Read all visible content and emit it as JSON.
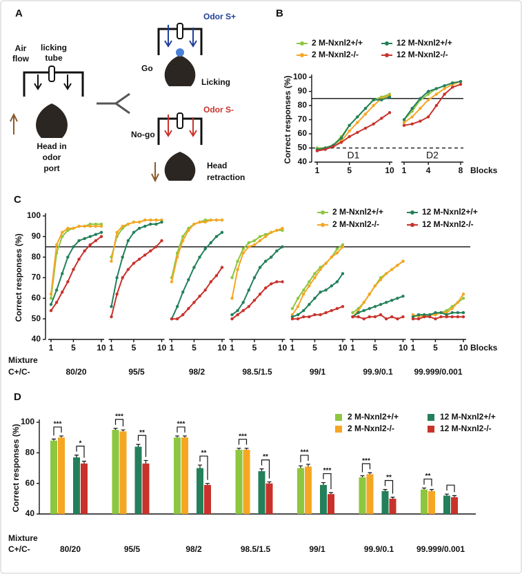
{
  "panel_labels": [
    "A",
    "B",
    "C",
    "D"
  ],
  "diagram": {
    "air_flow": [
      "Air",
      "flow"
    ],
    "licking_tube": [
      "licking",
      "tube"
    ],
    "head_in_odor_port": [
      "Head in",
      "odor",
      "port"
    ],
    "go": "Go",
    "odor_s_plus": "Odor S+",
    "licking": "Licking",
    "no_go": "No-go",
    "odor_s_minus": "Odor S-",
    "head_retraction": [
      "Head",
      "retraction"
    ]
  },
  "chart_data": [
    {
      "type": "line",
      "ylabel": "Correct responses (%)",
      "xlabel": "Blocks",
      "ylim": [
        40,
        100
      ],
      "yticks": [
        40,
        50,
        60,
        70,
        80,
        90,
        100
      ],
      "reference_lines": [
        {
          "value": 85,
          "style": "solid"
        },
        {
          "value": 50,
          "style": "dashed"
        }
      ],
      "series": [
        {
          "name": "2 M-Nxnl2+/+",
          "color": "#8dc63f"
        },
        {
          "name": "2 M-Nxnl2-/-",
          "color": "#f5a623"
        },
        {
          "name": "12 M-Nxnl2+/+",
          "color": "#23805a"
        },
        {
          "name": "12 M-Nxnl2-/-",
          "color": "#c8322b"
        }
      ],
      "segments": [
        {
          "label": "D1",
          "x": [
            1,
            2,
            3,
            4,
            5,
            6,
            7,
            8,
            9,
            10
          ],
          "xticks": [
            1,
            5,
            10
          ],
          "values": [
            [
              50,
              50,
              52,
              58,
              66,
              72,
              78,
              84,
              86,
              88
            ],
            [
              49,
              50,
              51,
              55,
              62,
              68,
              74,
              80,
              85,
              87
            ],
            [
              49,
              50,
              52,
              57,
              66,
              72,
              78,
              84,
              84,
              86
            ],
            [
              48,
              49,
              51,
              54,
              58,
              61,
              64,
              67,
              71,
              75
            ]
          ]
        },
        {
          "label": "D2",
          "x": [
            1,
            2,
            3,
            4,
            5,
            6,
            7,
            8
          ],
          "xticks": [
            1,
            4,
            8
          ],
          "values": [
            [
              70,
              76,
              84,
              88,
              92,
              94,
              96,
              97
            ],
            [
              68,
              72,
              78,
              84,
              88,
              92,
              95,
              97
            ],
            [
              70,
              78,
              85,
              90,
              92,
              94,
              96,
              97
            ],
            [
              66,
              67,
              69,
              72,
              80,
              88,
              93,
              95
            ]
          ]
        }
      ]
    },
    {
      "type": "line",
      "ylabel": "Correct responses (%)",
      "xlabel": "Blocks",
      "mixture_label": "Mixture",
      "ratio_label": "C+/C-",
      "ylim": [
        40,
        100
      ],
      "yticks": [
        40,
        50,
        60,
        70,
        80,
        90,
        100
      ],
      "reference_lines": [
        {
          "value": 85,
          "style": "solid"
        }
      ],
      "series": [
        {
          "name": "2 M-Nxnl2+/+",
          "color": "#8dc63f"
        },
        {
          "name": "2 M-Nxnl2-/-",
          "color": "#f5a623"
        },
        {
          "name": "12 M-Nxnl2+/+",
          "color": "#23805a"
        },
        {
          "name": "12 M-Nxnl2-/-",
          "color": "#c8322b"
        }
      ],
      "segments": [
        {
          "label": "80/20",
          "x": [
            1,
            2,
            3,
            4,
            5,
            6,
            7,
            8,
            9,
            10
          ],
          "xticks": [
            1,
            5,
            10
          ],
          "values": [
            [
              60,
              82,
              90,
              93,
              94,
              95,
              95,
              96,
              96,
              96
            ],
            [
              62,
              86,
              92,
              94,
              94,
              95,
              95,
              95,
              95,
              95
            ],
            [
              57,
              64,
              72,
              80,
              85,
              88,
              89,
              90,
              91,
              92
            ],
            [
              54,
              58,
              63,
              68,
              74,
              79,
              83,
              86,
              88,
              90
            ]
          ]
        },
        {
          "label": "95/5",
          "x": [
            1,
            2,
            3,
            4,
            5,
            6,
            7,
            8,
            9,
            10
          ],
          "xticks": [
            1,
            5,
            10
          ],
          "values": [
            [
              80,
              90,
              94,
              96,
              97,
              97,
              98,
              98,
              98,
              98
            ],
            [
              78,
              92,
              95,
              96,
              97,
              97,
              98,
              98,
              98,
              98
            ],
            [
              56,
              70,
              80,
              88,
              92,
              94,
              95,
              96,
              96,
              97
            ],
            [
              51,
              62,
              70,
              74,
              77,
              79,
              81,
              83,
              85,
              88
            ]
          ]
        },
        {
          "label": "98/2",
          "x": [
            1,
            2,
            3,
            4,
            5,
            6,
            7,
            8,
            9,
            10
          ],
          "xticks": [
            1,
            5,
            10
          ],
          "values": [
            [
              70,
              82,
              90,
              94,
              96,
              97,
              98,
              98,
              98,
              98
            ],
            [
              68,
              80,
              88,
              93,
              96,
              97,
              97,
              98,
              98,
              98
            ],
            [
              50,
              56,
              63,
              69,
              75,
              80,
              84,
              87,
              90,
              92
            ],
            [
              50,
              50,
              52,
              55,
              58,
              61,
              64,
              68,
              71,
              75
            ]
          ]
        },
        {
          "label": "98.5/1.5",
          "x": [
            1,
            2,
            3,
            4,
            5,
            6,
            7,
            8,
            9,
            10
          ],
          "xticks": [
            1,
            5,
            10
          ],
          "values": [
            [
              70,
              78,
              84,
              87,
              88,
              90,
              91,
              92,
              93,
              93
            ],
            [
              60,
              74,
              82,
              85,
              86,
              88,
              90,
              92,
              93,
              94
            ],
            [
              52,
              54,
              58,
              64,
              70,
              75,
              78,
              80,
              83,
              85
            ],
            [
              50,
              52,
              54,
              56,
              59,
              62,
              65,
              67,
              68,
              68
            ]
          ]
        },
        {
          "label": "99/1",
          "x": [
            1,
            2,
            3,
            4,
            5,
            6,
            7,
            8,
            9,
            10
          ],
          "xticks": [
            1,
            5,
            10
          ],
          "values": [
            [
              55,
              60,
              64,
              68,
              72,
              75,
              77,
              80,
              84,
              86
            ],
            [
              52,
              56,
              62,
              66,
              70,
              74,
              77,
              80,
              82,
              85
            ],
            [
              51,
              52,
              54,
              57,
              60,
              63,
              64,
              66,
              68,
              72
            ],
            [
              50,
              50,
              51,
              51,
              52,
              52,
              53,
              54,
              55,
              56
            ]
          ]
        },
        {
          "label": "99.9/0.1",
          "x": [
            1,
            2,
            3,
            4,
            5,
            6,
            7,
            8,
            9,
            10
          ],
          "xticks": [
            1,
            5,
            10
          ],
          "values": [
            [
              53,
              55,
              58,
              62,
              66,
              70,
              72,
              74,
              76,
              78
            ],
            [
              51,
              54,
              58,
              62,
              66,
              69,
              72,
              74,
              76,
              78
            ],
            [
              51,
              53,
              54,
              55,
              56,
              57,
              58,
              59,
              60,
              61
            ],
            [
              51,
              51,
              50,
              51,
              51,
              52,
              50,
              51,
              50,
              51
            ]
          ]
        },
        {
          "label": "99.999/0.001",
          "x": [
            1,
            2,
            3,
            4,
            5,
            6,
            7,
            8,
            9,
            10
          ],
          "xticks": [
            1,
            5,
            10
          ],
          "values": [
            [
              51,
              52,
              51,
              52,
              52,
              53,
              54,
              56,
              58,
              60
            ],
            [
              52,
              51,
              52,
              52,
              52,
              53,
              53,
              55,
              58,
              62
            ],
            [
              51,
              52,
              52,
              52,
              53,
              53,
              52,
              53,
              53,
              53
            ],
            [
              50,
              50,
              51,
              51,
              50,
              51,
              51,
              51,
              51,
              51
            ]
          ]
        }
      ]
    },
    {
      "type": "bar",
      "ylabel": "Correct responses (%)",
      "mixture_label": "Mixture",
      "ratio_label": "C+/C-",
      "categories": [
        "80/20",
        "95/5",
        "98/2",
        "98.5/1.5",
        "99/1",
        "99.9/0.1",
        "99.999/0.001"
      ],
      "ylim": [
        40,
        100
      ],
      "yticks": [
        40,
        60,
        80,
        100
      ],
      "series": [
        {
          "name": "2 M-Nxnl2+/+",
          "color": "#8dc63f",
          "values": [
            88,
            95,
            90,
            82,
            70,
            64,
            56
          ],
          "errors": [
            1,
            1,
            1,
            1,
            1.5,
            1,
            1
          ]
        },
        {
          "name": "2 M-Nxnl2-/-",
          "color": "#f5a623",
          "values": [
            90,
            94,
            90,
            82,
            71,
            66,
            55
          ],
          "errors": [
            1,
            1,
            1,
            1,
            1.5,
            1,
            1
          ]
        },
        {
          "name": "12 M-Nxnl2+/+",
          "color": "#23805a",
          "values": [
            77,
            84,
            70,
            68,
            59,
            55,
            52
          ],
          "errors": [
            1.5,
            1.5,
            2,
            1.5,
            1.5,
            1,
            1
          ]
        },
        {
          "name": "12 M-Nxnl2-/-",
          "color": "#c8322b",
          "values": [
            73,
            73,
            59,
            60,
            53,
            50,
            51
          ],
          "errors": [
            1.5,
            2,
            1,
            1,
            1,
            1,
            1
          ]
        }
      ],
      "significance": {
        "young": [
          "***",
          "***",
          "***",
          "***",
          "***",
          "***",
          "**"
        ],
        "old": [
          "*",
          "**",
          "**",
          "**",
          "***",
          "**",
          null
        ]
      }
    }
  ]
}
